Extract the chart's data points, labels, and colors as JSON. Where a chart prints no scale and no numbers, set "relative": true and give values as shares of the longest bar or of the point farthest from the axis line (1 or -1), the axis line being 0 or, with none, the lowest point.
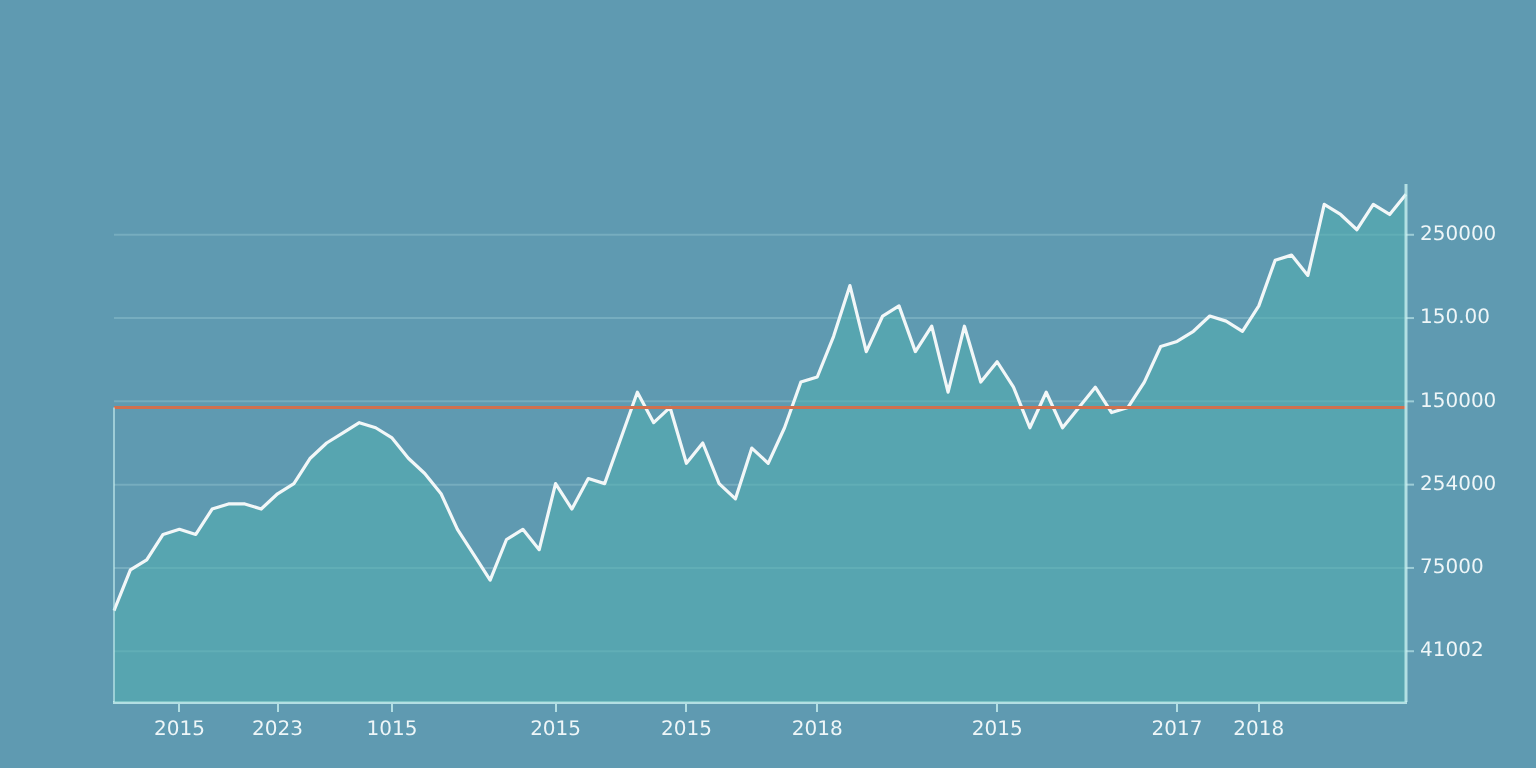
{
  "chart_data": {
    "type": "area",
    "relative": true,
    "grid": "y",
    "categories": [
      null,
      null,
      null,
      null,
      "2015",
      null,
      null,
      null,
      null,
      null,
      "2023",
      null,
      null,
      null,
      null,
      null,
      null,
      "1015",
      null,
      null,
      null,
      null,
      null,
      null,
      null,
      null,
      null,
      "2015",
      null,
      null,
      null,
      null,
      null,
      null,
      null,
      "2015",
      null,
      null,
      null,
      null,
      null,
      null,
      null,
      "2018",
      null,
      null,
      null,
      null,
      null,
      null,
      null,
      null,
      null,
      null,
      "2015",
      null,
      null,
      null,
      null,
      null,
      null,
      null,
      null,
      null,
      null,
      "2017",
      null,
      null,
      null,
      null,
      "2018",
      null,
      null,
      null,
      null,
      null,
      null,
      null,
      null,
      null
    ],
    "series": [
      {
        "color": "#f2f7f8",
        "values": [
          0.18,
          0.26,
          0.28,
          0.33,
          0.34,
          0.33,
          0.38,
          0.39,
          0.39,
          0.38,
          0.41,
          0.43,
          0.48,
          0.51,
          0.53,
          0.55,
          0.54,
          0.52,
          0.48,
          0.45,
          0.41,
          0.34,
          0.29,
          0.24,
          0.32,
          0.34,
          0.3,
          0.43,
          0.38,
          0.44,
          0.43,
          0.52,
          0.61,
          0.55,
          0.58,
          0.47,
          0.51,
          0.43,
          0.4,
          0.5,
          0.47,
          0.54,
          0.63,
          0.64,
          0.72,
          0.82,
          0.69,
          0.76,
          0.78,
          0.69,
          0.74,
          0.61,
          0.74,
          0.63,
          0.67,
          0.62,
          0.54,
          0.61,
          0.54,
          0.58,
          0.62,
          0.57,
          0.58,
          0.63,
          0.7,
          0.71,
          0.73,
          0.76,
          0.75,
          0.73,
          0.78,
          0.87,
          0.88,
          0.84,
          0.98,
          0.96,
          0.93,
          0.98,
          0.96,
          1
        ]
      }
    ],
    "annotations": [
      "250000",
      "150.00",
      "150000",
      "254000",
      "75000",
      "41002"
    ],
    "ref_lines": [
      {
        "axis": "y",
        "value": 0.58,
        "color": "#d0704f"
      }
    ],
    "marker": "none",
    "line_style": "solid"
  }
}
